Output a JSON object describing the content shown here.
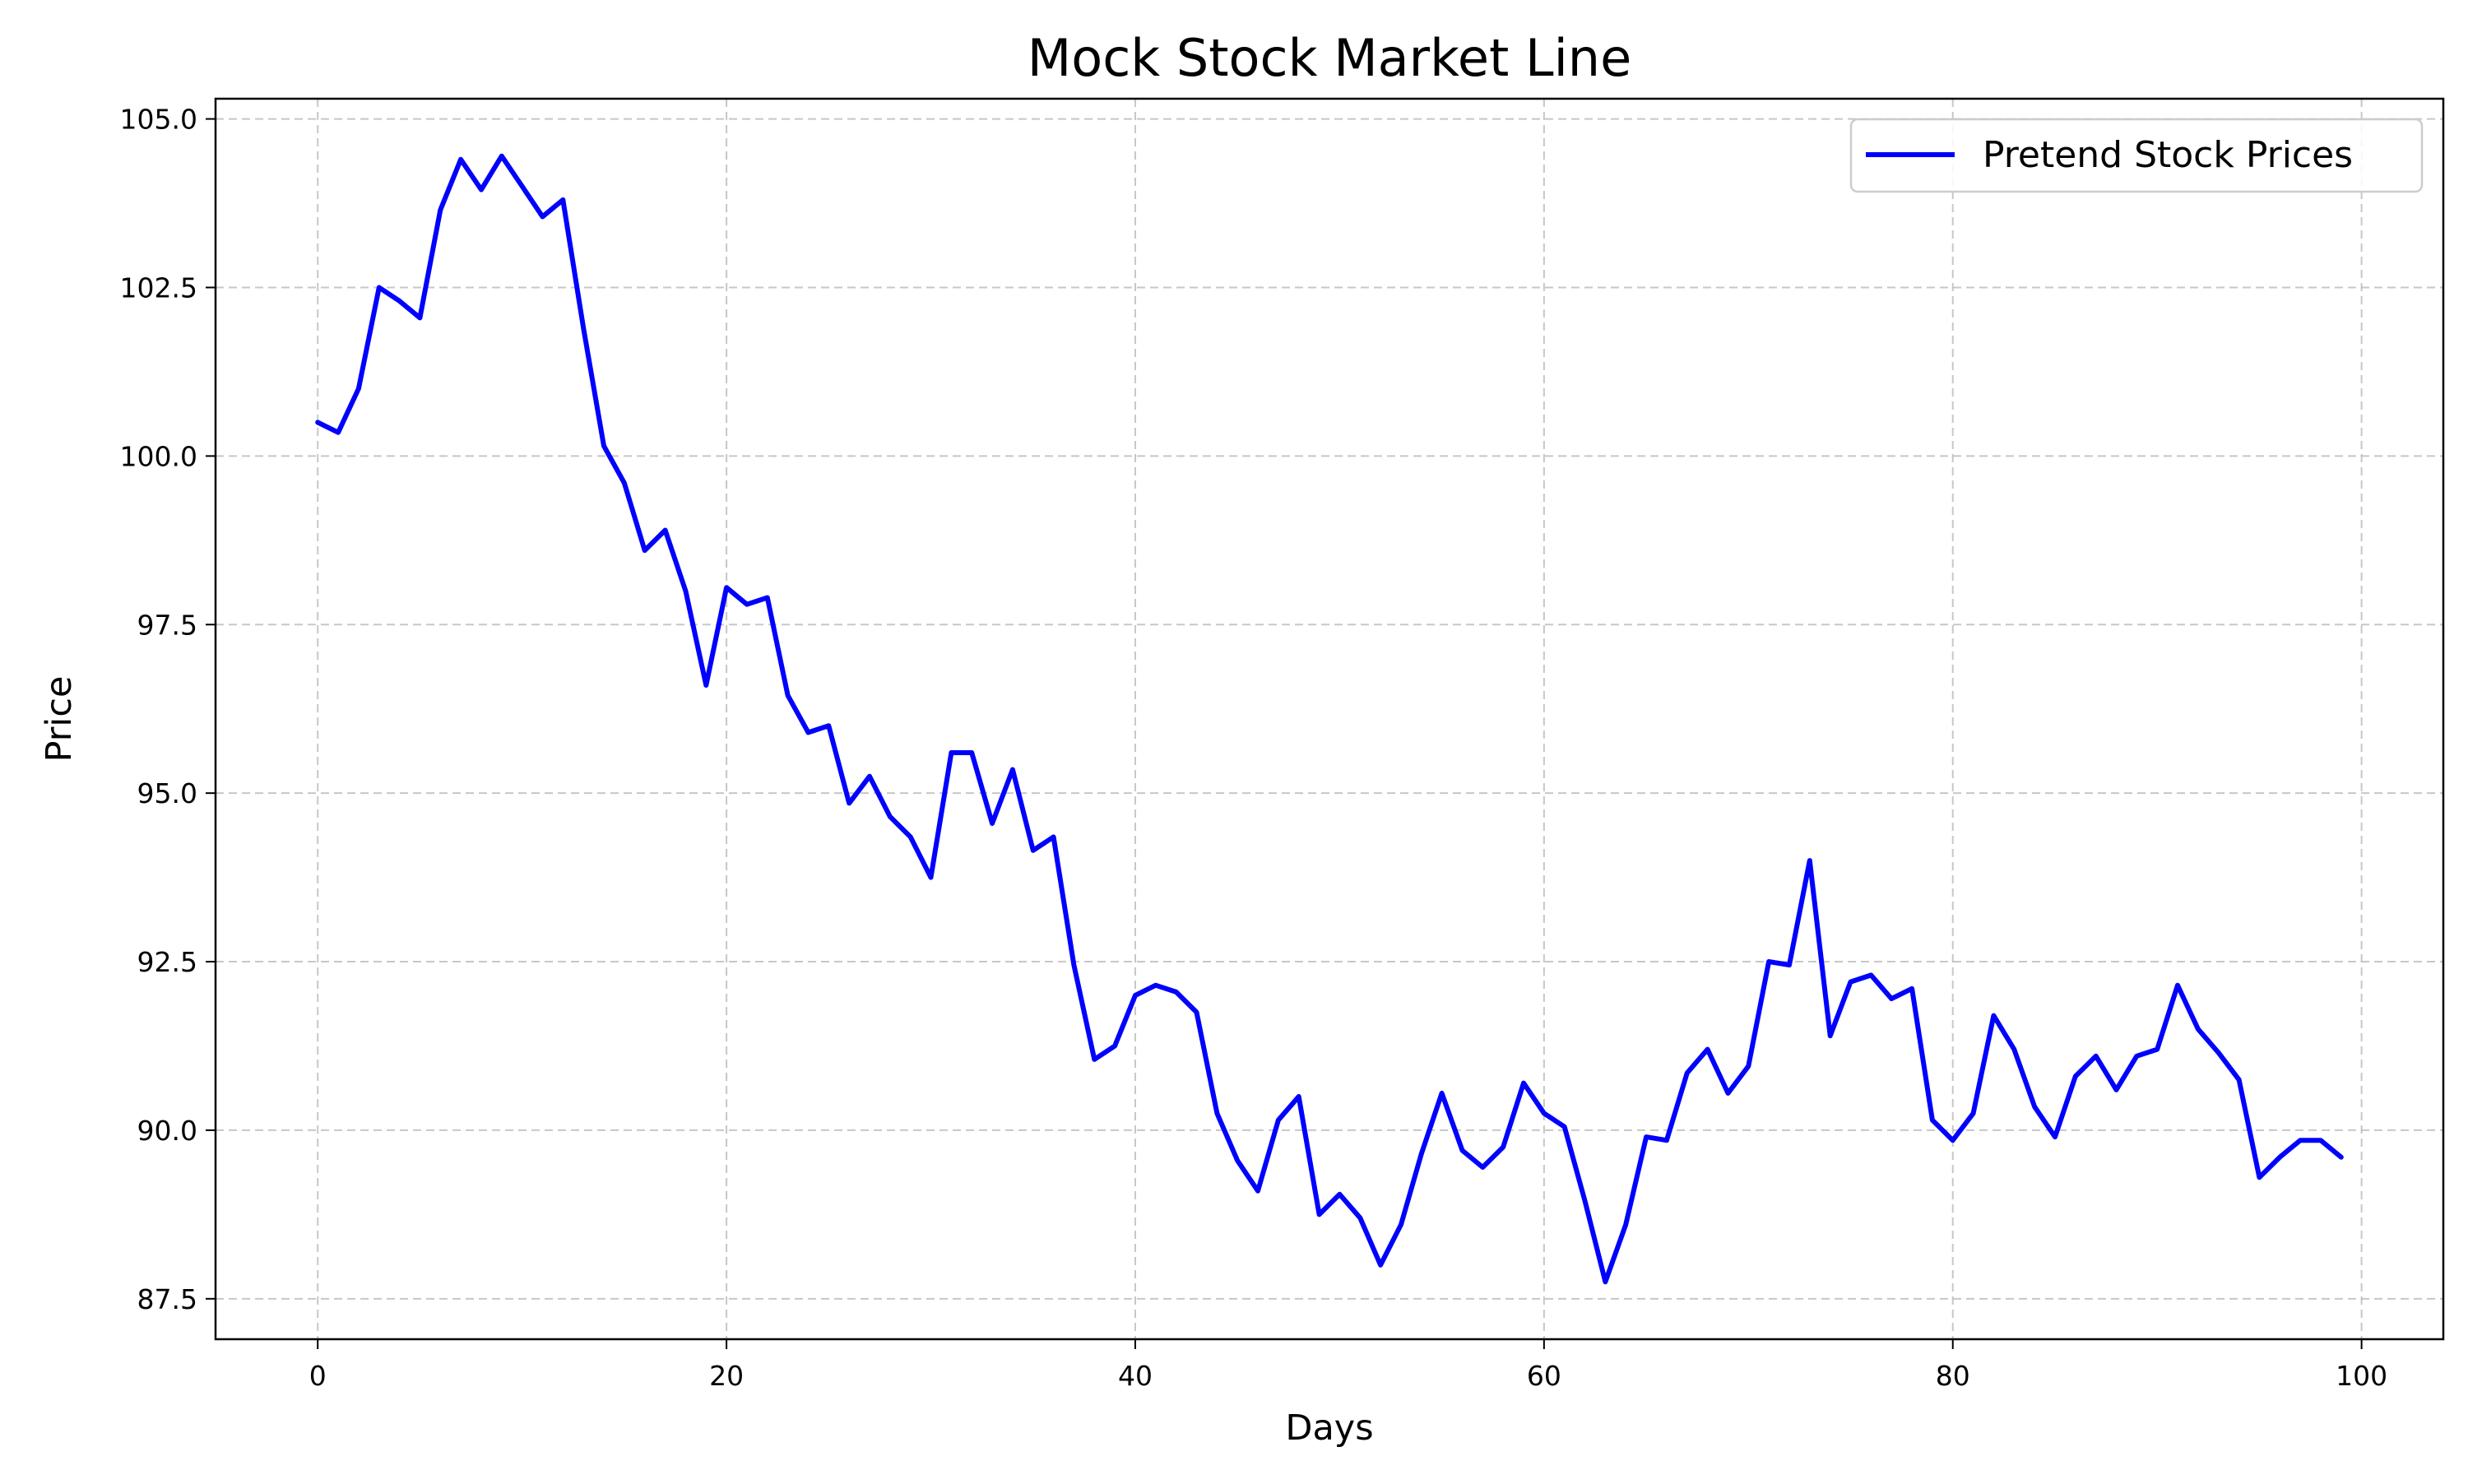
{
  "chart_data": {
    "type": "line",
    "title": "Mock Stock Market Line",
    "xlabel": "Days",
    "ylabel": "Price",
    "xlim": [
      -5,
      104
    ],
    "ylim": [
      86.9,
      105.3
    ],
    "x_ticks": [
      0,
      20,
      40,
      60,
      80,
      100
    ],
    "x_tick_labels": [
      "0",
      "20",
      "40",
      "60",
      "80",
      "100"
    ],
    "y_ticks": [
      87.5,
      90.0,
      92.5,
      95.0,
      97.5,
      100.0,
      102.5,
      105.0
    ],
    "y_tick_labels": [
      "87.5",
      "90.0",
      "92.5",
      "95.0",
      "97.5",
      "100.0",
      "102.5",
      "105.0"
    ],
    "grid": true,
    "legend_position": "top-right",
    "series": [
      {
        "name": "Pretend Stock Prices",
        "color": "#0000ff",
        "x": [
          0,
          1,
          2,
          3,
          4,
          5,
          6,
          7,
          8,
          9,
          10,
          11,
          12,
          13,
          14,
          15,
          16,
          17,
          18,
          19,
          20,
          21,
          22,
          23,
          24,
          25,
          26,
          27,
          28,
          29,
          30,
          31,
          32,
          33,
          34,
          35,
          36,
          37,
          38,
          39,
          40,
          41,
          42,
          43,
          44,
          45,
          46,
          47,
          48,
          49,
          50,
          51,
          52,
          53,
          54,
          55,
          56,
          57,
          58,
          59,
          60,
          61,
          62,
          63,
          64,
          65,
          66,
          67,
          68,
          69,
          70,
          71,
          72,
          73,
          74,
          75,
          76,
          77,
          78,
          79,
          80,
          81,
          82,
          83,
          84,
          85,
          86,
          87,
          88,
          89,
          90,
          91,
          92,
          93,
          94,
          95,
          96,
          97,
          98,
          99
        ],
        "values": [
          100.5,
          100.35,
          101.0,
          102.5,
          102.3,
          102.05,
          103.65,
          104.4,
          103.95,
          104.45,
          104.0,
          103.55,
          103.8,
          101.9,
          100.15,
          99.6,
          98.6,
          98.9,
          98.0,
          96.6,
          98.05,
          97.8,
          97.9,
          96.45,
          95.9,
          96.0,
          94.85,
          95.25,
          94.65,
          94.35,
          93.75,
          95.6,
          95.6,
          94.55,
          95.35,
          94.15,
          94.35,
          92.45,
          91.05,
          91.25,
          92.0,
          92.15,
          92.05,
          91.75,
          90.25,
          89.55,
          89.1,
          90.15,
          90.5,
          88.75,
          89.05,
          88.7,
          88.0,
          88.6,
          89.65,
          90.55,
          89.7,
          89.45,
          89.75,
          90.7,
          90.25,
          90.05,
          88.95,
          87.75,
          88.6,
          89.9,
          89.85,
          90.85,
          91.2,
          90.55,
          90.95,
          92.5,
          92.45,
          94.0,
          91.4,
          92.2,
          92.3,
          91.95,
          92.1,
          90.15,
          89.85,
          90.25,
          91.7,
          91.2,
          90.35,
          89.9,
          90.8,
          91.1,
          90.6,
          91.1,
          91.2,
          92.15,
          91.5,
          91.15,
          90.75,
          89.3,
          89.6,
          89.85,
          89.85,
          89.6
        ]
      }
    ]
  }
}
